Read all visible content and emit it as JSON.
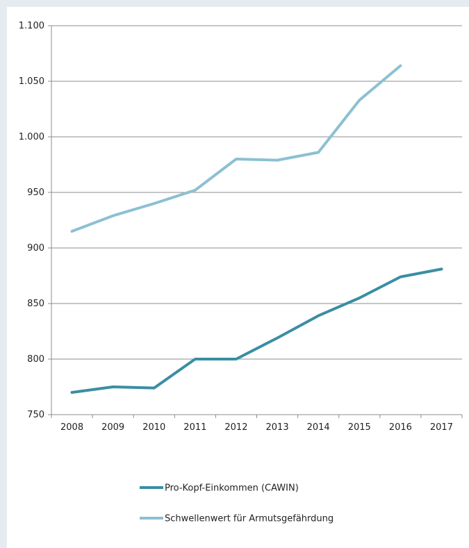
{
  "chart_data": {
    "type": "line",
    "title": "",
    "xlabel": "",
    "ylabel": "",
    "categories": [
      "2008",
      "2009",
      "2010",
      "2011",
      "2012",
      "2013",
      "2014",
      "2015",
      "2016",
      "2017"
    ],
    "ylim": [
      750,
      1100
    ],
    "yticks": [
      750,
      800,
      850,
      900,
      950,
      1000,
      1050,
      1100
    ],
    "ytick_labels": [
      "750",
      "800",
      "850",
      "900",
      "950",
      "1.000",
      "1.050",
      "1.100"
    ],
    "grid": "horizontal",
    "legend_position": "bottom-center",
    "series": [
      {
        "name": "Pro-Kopf-Einkommen (CAWIN)",
        "color": "#3a8ea3",
        "values": [
          770,
          775,
          774,
          800,
          800,
          819,
          839,
          855,
          874,
          881
        ]
      },
      {
        "name": "Schwellenwert für Armutsgefährdung",
        "color": "#8cc0d2",
        "values": [
          915,
          929,
          940,
          952,
          980,
          979,
          986,
          1033,
          1064,
          null
        ]
      }
    ]
  }
}
